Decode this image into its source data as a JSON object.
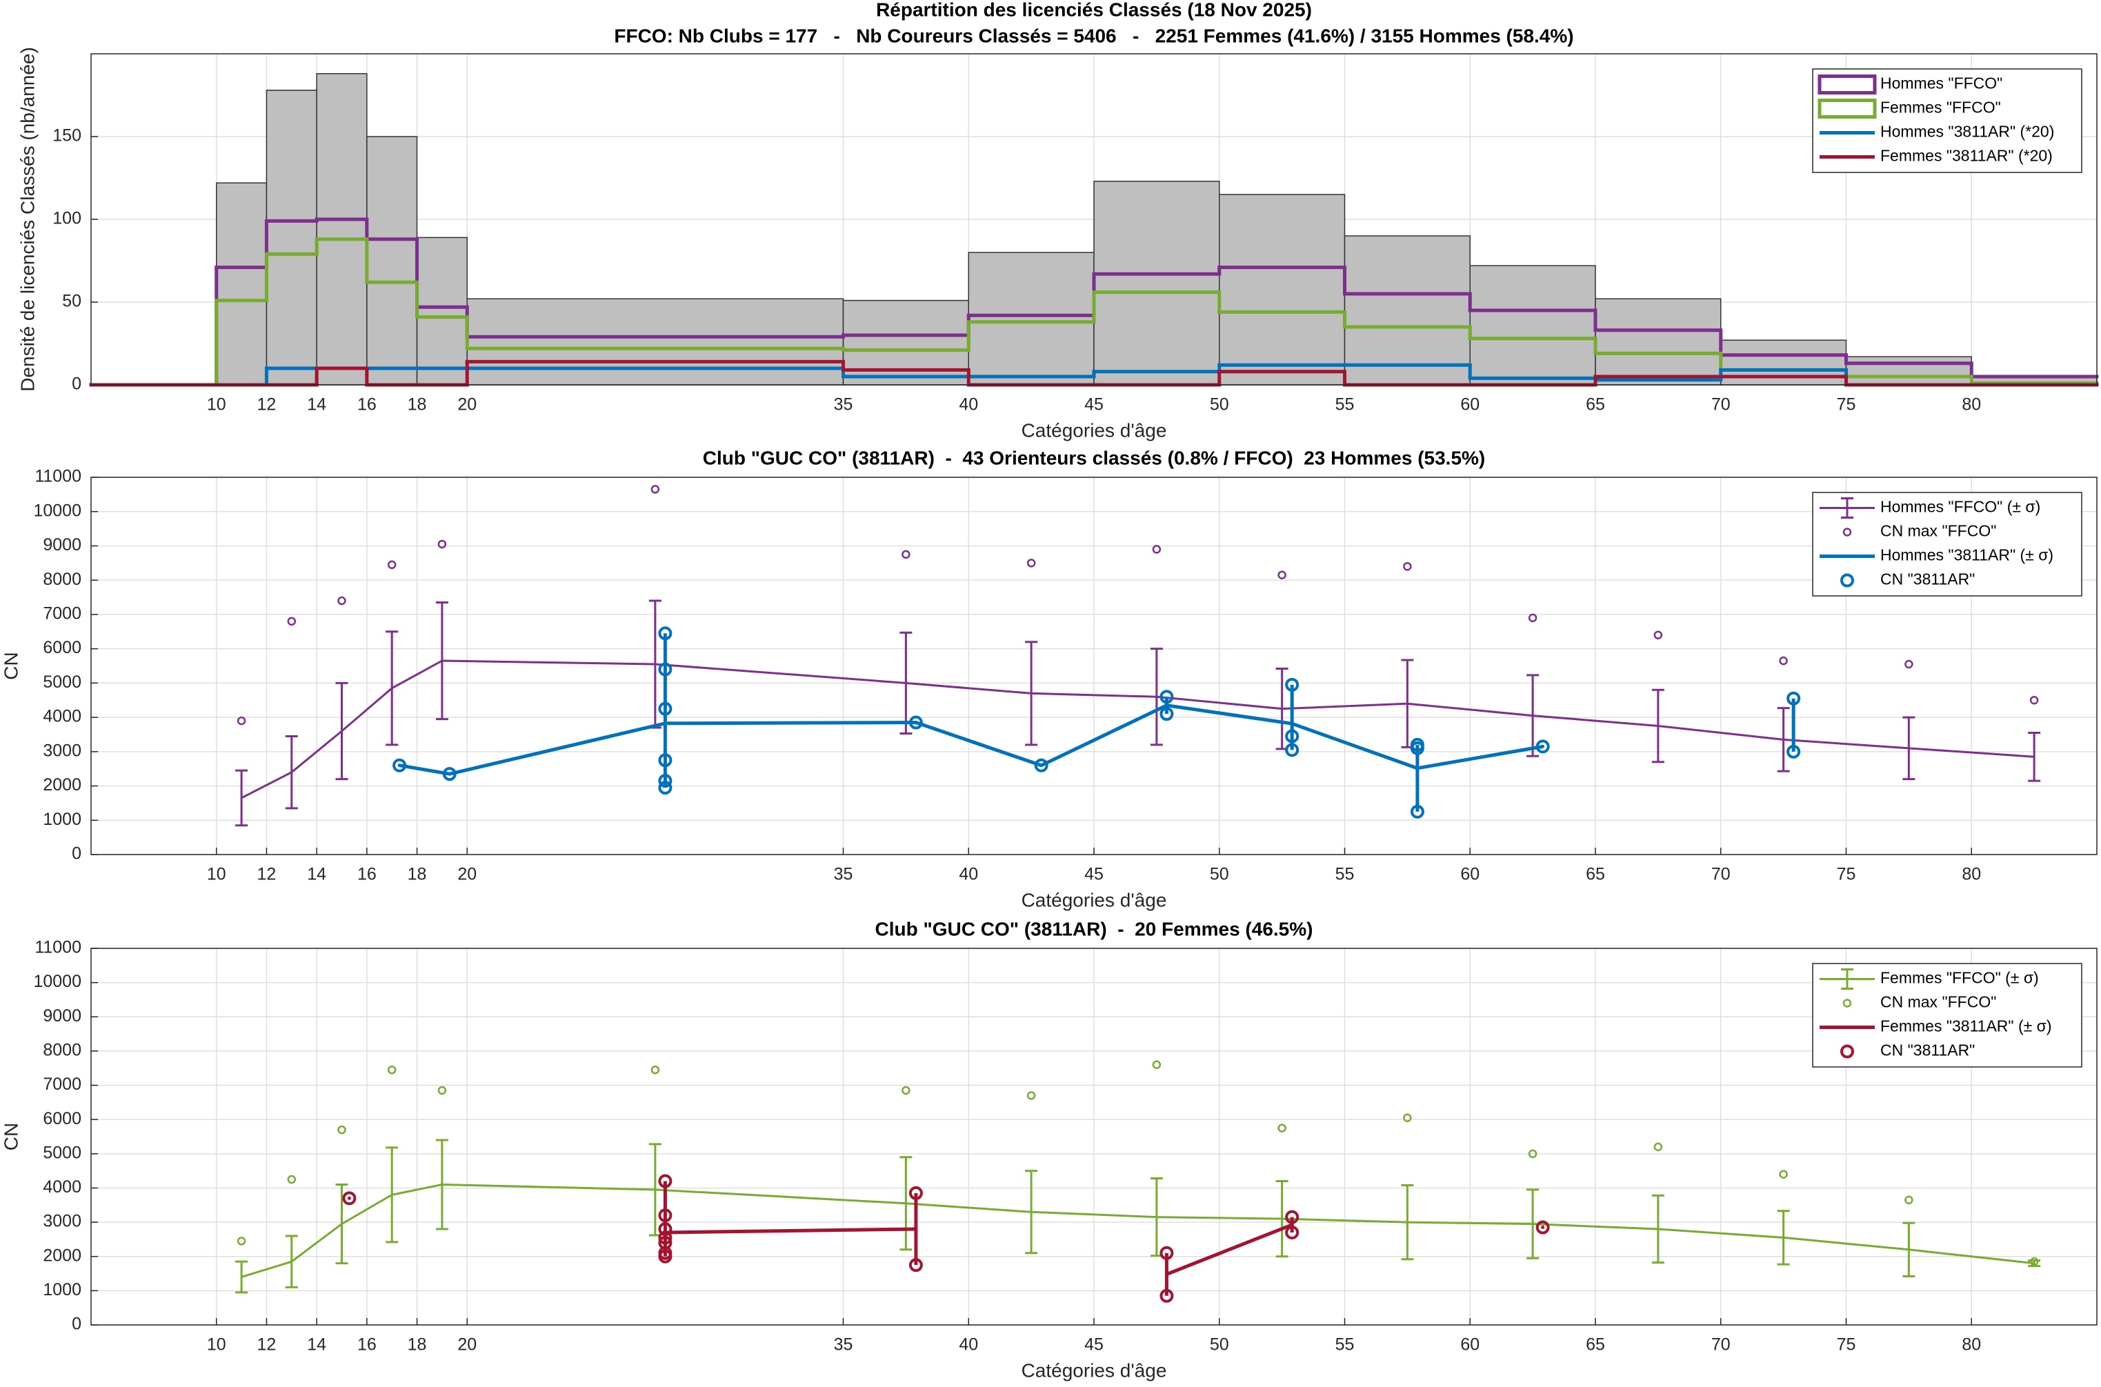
{
  "chart_data": [
    {
      "type": "histogram",
      "title": "Répartition des licenciés Classés (18 Nov 2025)",
      "subtitle": "FFCO: Nb Clubs = 177   -   Nb Coureurs Classés = 5406   -   2251 Femmes (41.6%) / 3155 Hommes (58.4%)",
      "xlabel": "Catégories d'âge",
      "ylabel": "Densité de licenciés Classés (nb/année)",
      "xlim": [
        5,
        85
      ],
      "xticks": [
        10,
        12,
        14,
        16,
        18,
        20,
        35,
        40,
        45,
        50,
        55,
        60,
        65,
        70,
        75,
        80
      ],
      "ylim": [
        0,
        200
      ],
      "yticks": [
        0,
        50,
        100,
        150
      ],
      "grid": true,
      "legend": "upper right",
      "bins": [
        5,
        10,
        12,
        14,
        16,
        18,
        20,
        35,
        40,
        45,
        50,
        55,
        60,
        65,
        70,
        75,
        80,
        85
      ],
      "values": [
        0,
        122,
        178,
        188,
        150,
        89,
        52,
        51,
        80,
        123,
        115,
        90,
        72,
        52,
        27,
        17,
        5
      ],
      "color": "#bfbfbf",
      "series": [
        {
          "name": "Hommes \"FFCO\"",
          "color": "#7e2f8e",
          "values": [
            0,
            71,
            99,
            100,
            88,
            47,
            29,
            30,
            42,
            67,
            71,
            55,
            45,
            33,
            18,
            13,
            5
          ]
        },
        {
          "name": "Femmes \"FFCO\"",
          "color": "#77ac30",
          "values": [
            0,
            51,
            79,
            88,
            62,
            41,
            22,
            21,
            38,
            56,
            44,
            35,
            28,
            19,
            9,
            5,
            1
          ]
        },
        {
          "name": "Hommes \"3811AR\" (*20)",
          "color": "#0072bd",
          "values": [
            0,
            0,
            10,
            10,
            10,
            10,
            10,
            5,
            5,
            8,
            12,
            12,
            4,
            3,
            9,
            0,
            0
          ]
        },
        {
          "name": "Femmes \"3811AR\" (*20)",
          "color": "#a2142f",
          "values": [
            0,
            0,
            0,
            10,
            0,
            0,
            14,
            9,
            0,
            0,
            8,
            0,
            0,
            5,
            5,
            0,
            0
          ]
        }
      ]
    },
    {
      "type": "errorbar",
      "title": "Club \"GUC CO\" (3811AR)  -  43 Orienteurs classés (0.8% / FFCO)  23 Hommes (53.5%)",
      "xlabel": "Catégories d'âge",
      "ylabel": "CN",
      "xlim": [
        5,
        85
      ],
      "xticks": [
        10,
        12,
        14,
        16,
        18,
        20,
        35,
        40,
        45,
        50,
        55,
        60,
        65,
        70,
        75,
        80
      ],
      "ylim": [
        0,
        11000
      ],
      "yticks": [
        0,
        1000,
        2000,
        3000,
        4000,
        5000,
        6000,
        7000,
        8000,
        9000,
        10000,
        11000
      ],
      "grid": true,
      "legend": "upper right",
      "series": [
        {
          "name": "Hommes \"FFCO\" (± σ)",
          "color": "#7e2f8e",
          "x": [
            11,
            13,
            15,
            17,
            19,
            27.5,
            37.5,
            42.5,
            47.5,
            52.5,
            57.5,
            62.5,
            67.5,
            72.5,
            77.5,
            82.5
          ],
          "values": [
            1650,
            2400,
            3600,
            4850,
            5650,
            5550,
            5000,
            4700,
            4600,
            4250,
            4400,
            4050,
            3750,
            3350,
            3100,
            2850
          ],
          "errors": [
            800,
            1050,
            1400,
            1650,
            1700,
            1850,
            1470,
            1500,
            1400,
            1170,
            1270,
            1180,
            1050,
            920,
            900,
            700
          ]
        },
        {
          "name": "CN max \"FFCO\"",
          "color": "#7e2f8e",
          "mode": "markers",
          "x": [
            11,
            13,
            15,
            17,
            19,
            27.5,
            37.5,
            42.5,
            47.5,
            52.5,
            57.5,
            62.5,
            67.5,
            72.5,
            77.5,
            82.5
          ],
          "values": [
            3900,
            6800,
            7400,
            8450,
            9050,
            10650,
            8750,
            8500,
            8900,
            8150,
            8400,
            6900,
            6400,
            5650,
            5550,
            4500
          ]
        },
        {
          "name": "Hommes \"3811AR\" (± σ)",
          "color": "#0072bd",
          "x": [
            17.3,
            19.3,
            27.9,
            37.9,
            42.9,
            47.9,
            52.9,
            57.9,
            62.9,
            67.9,
            72.9
          ],
          "values": [
            2600,
            2350,
            3825,
            3850,
            2600,
            4350,
            3817,
            2517,
            3150,
            null,
            3775
          ]
        },
        {
          "name": "CN \"3811AR\"",
          "color": "#0072bd",
          "mode": "markers",
          "x": [
            17.3,
            19.3,
            27.9,
            27.9,
            27.9,
            27.9,
            27.9,
            27.9,
            37.9,
            42.9,
            47.9,
            47.9,
            52.9,
            52.9,
            52.9,
            57.9,
            57.9,
            57.9,
            62.9,
            72.9,
            72.9
          ],
          "values": [
            2600,
            2350,
            6450,
            5400,
            4250,
            2750,
            2150,
            1950,
            3850,
            2600,
            4600,
            4100,
            4950,
            3450,
            3050,
            3200,
            3100,
            1250,
            3150,
            4550,
            3000
          ]
        }
      ]
    },
    {
      "type": "errorbar",
      "title": "Club \"GUC CO\" (3811AR)  -  20 Femmes (46.5%)",
      "xlabel": "Catégories d'âge",
      "ylabel": "CN",
      "xlim": [
        5,
        85
      ],
      "xticks": [
        10,
        12,
        14,
        16,
        18,
        20,
        35,
        40,
        45,
        50,
        55,
        60,
        65,
        70,
        75,
        80
      ],
      "ylim": [
        0,
        11000
      ],
      "yticks": [
        0,
        1000,
        2000,
        3000,
        4000,
        5000,
        6000,
        7000,
        8000,
        9000,
        10000,
        11000
      ],
      "grid": true,
      "legend": "upper right",
      "series": [
        {
          "name": "Femmes \"FFCO\" (± σ)",
          "color": "#77ac30",
          "x": [
            11,
            13,
            15,
            17,
            19,
            27.5,
            37.5,
            42.5,
            47.5,
            52.5,
            57.5,
            62.5,
            67.5,
            72.5,
            77.5,
            82.5
          ],
          "values": [
            1400,
            1850,
            2950,
            3800,
            4100,
            3950,
            3550,
            3300,
            3150,
            3100,
            3000,
            2950,
            2800,
            2550,
            2200,
            1800
          ],
          "errors": [
            450,
            750,
            1150,
            1380,
            1300,
            1330,
            1350,
            1200,
            1130,
            1100,
            1080,
            1000,
            980,
            780,
            780,
            80
          ]
        },
        {
          "name": "CN max \"FFCO\"",
          "color": "#77ac30",
          "mode": "markers",
          "x": [
            11,
            13,
            15,
            17,
            19,
            27.5,
            37.5,
            42.5,
            47.5,
            52.5,
            57.5,
            62.5,
            67.5,
            72.5,
            77.5,
            82.5
          ],
          "values": [
            2450,
            4250,
            5700,
            7450,
            6850,
            7450,
            6850,
            6700,
            7600,
            5750,
            6050,
            5000,
            5200,
            4400,
            3650,
            1850
          ]
        },
        {
          "name": "Femmes \"3811AR\" (± σ)",
          "color": "#a2142f",
          "x": [
            15.3,
            19.3,
            27.9,
            37.9,
            42.9,
            47.9,
            52.9,
            57.9,
            62.9
          ],
          "values": [
            3700,
            null,
            2700,
            2800,
            null,
            1480,
            2925,
            null,
            2850
          ]
        },
        {
          "name": "CN \"3811AR\"",
          "color": "#a2142f",
          "mode": "markers",
          "x": [
            15.3,
            27.9,
            27.9,
            27.9,
            27.9,
            27.9,
            27.9,
            27.9,
            37.9,
            37.9,
            47.9,
            47.9,
            52.9,
            52.9,
            62.9
          ],
          "values": [
            3700,
            4200,
            3200,
            2800,
            2550,
            2400,
            2100,
            2000,
            3850,
            1750,
            2100,
            850,
            3150,
            2700,
            2850
          ]
        }
      ]
    }
  ]
}
